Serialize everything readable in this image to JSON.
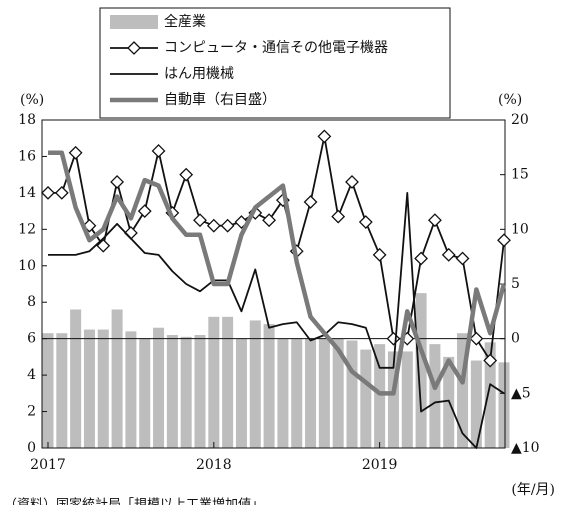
{
  "chart_data": {
    "type": "combo",
    "categories": [
      "2017",
      null,
      null,
      null,
      null,
      null,
      null,
      null,
      null,
      null,
      null,
      null,
      "2018",
      null,
      null,
      null,
      null,
      null,
      null,
      null,
      null,
      null,
      null,
      null,
      "2019",
      null,
      null,
      null,
      null,
      null,
      null,
      null,
      null,
      null
    ],
    "series": [
      {
        "name": "全産業",
        "type": "bar",
        "color": "#bdbdbd",
        "values": [
          6.3,
          6.3,
          7.6,
          6.5,
          6.5,
          7.6,
          6.4,
          6.0,
          6.6,
          6.2,
          6.1,
          6.2,
          7.2,
          7.2,
          6.0,
          7.0,
          6.8,
          6.0,
          6.0,
          6.0,
          6.0,
          6.0,
          5.9,
          5.4,
          5.7,
          5.3,
          5.3,
          8.5,
          5.7,
          5.0,
          6.3,
          4.8,
          5.8,
          4.7
        ]
      },
      {
        "name": "コンピュータ・通信その他電子機器",
        "type": "line",
        "marker": "diamond",
        "color": "#111111",
        "values": [
          14,
          14,
          16.2,
          12.2,
          11.1,
          14.6,
          11.8,
          13,
          16.3,
          12.9,
          15,
          12.5,
          12.2,
          12.2,
          12.4,
          12.9,
          12.5,
          13.6,
          10.8,
          13.5,
          17.1,
          12.7,
          14.6,
          12.4,
          10.6,
          6.0,
          6.0,
          10.4,
          12.5,
          10.6,
          10.4,
          6.0,
          4.8,
          11.4
        ]
      },
      {
        "name": "はん用機械",
        "type": "line",
        "color": "#111111",
        "values": [
          10.6,
          10.6,
          10.6,
          10.8,
          11.5,
          12.3,
          11.5,
          10.7,
          10.6,
          9.7,
          9.0,
          8.6,
          9.2,
          9.2,
          7.5,
          9.8,
          6.6,
          6.8,
          6.9,
          5.9,
          6.2,
          6.9,
          6.8,
          6.6,
          4.4,
          4.4,
          14.0,
          2.0,
          2.5,
          2.6,
          0.8,
          0,
          3.5,
          3.0
        ]
      },
      {
        "name": "自動車（右目盛）",
        "type": "line",
        "axis": "y2",
        "color": "#7a7a7a",
        "values": [
          17,
          17,
          12,
          9,
          10,
          13,
          11,
          14.5,
          14,
          11,
          9.5,
          9.5,
          5,
          5,
          9.5,
          12,
          13,
          14,
          7,
          2,
          0.5,
          -1,
          -3,
          -4,
          -5,
          -5,
          2.5,
          -1,
          -4.5,
          -2,
          -4,
          4.5,
          0.5,
          5
        ]
      }
    ],
    "ylim": [
      0,
      18
    ],
    "yticks": [
      0,
      2,
      4,
      6,
      8,
      10,
      12,
      14,
      16,
      18
    ],
    "y2lim": [
      -10,
      20
    ],
    "y2ticks": [
      {
        "value": -10,
        "label": "▲10"
      },
      {
        "value": -5,
        "label": "▲5"
      },
      0,
      5,
      10,
      15,
      20
    ],
    "ylabel": "(%)",
    "y2label": "(%)",
    "xlabel": "(年/月)",
    "source": "（資料）国家統計局「規模以上工業増加値」"
  }
}
